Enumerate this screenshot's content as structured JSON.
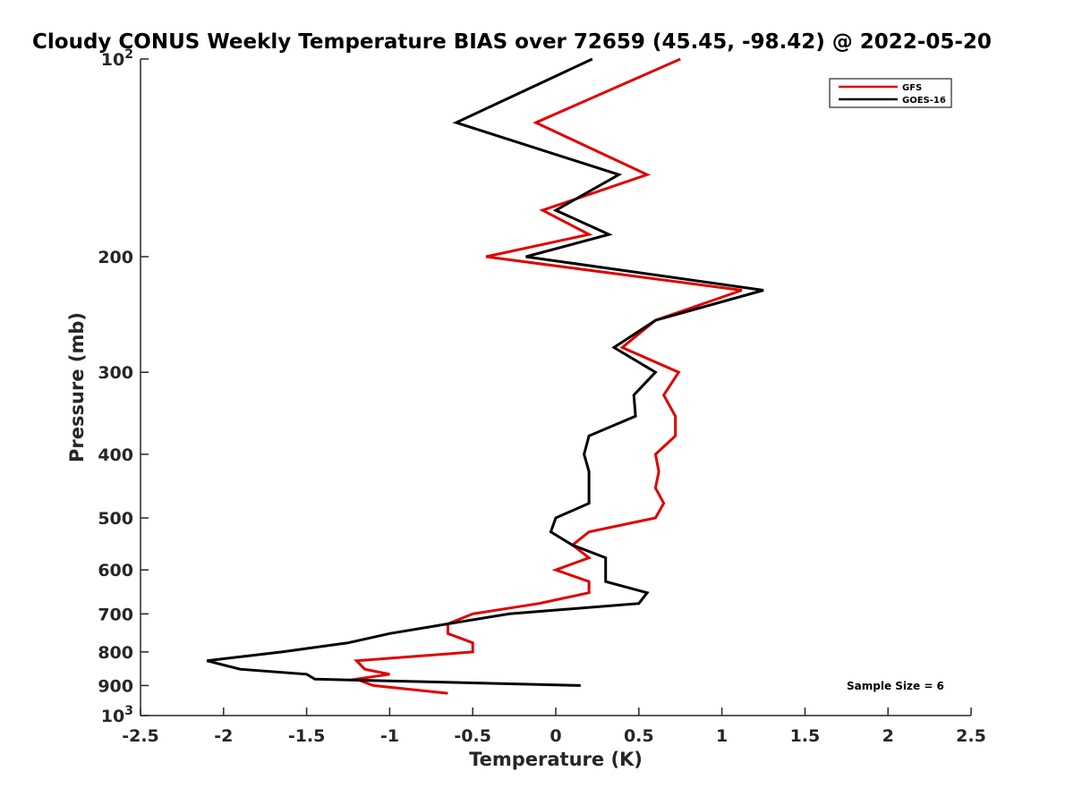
{
  "chart_data": {
    "type": "line",
    "title": "Cloudy CONUS Weekly Temperature BIAS over 72659 (45.45, -98.42) @ 2022-05-20",
    "xlabel": "Temperature (K)",
    "ylabel": "Pressure (mb)",
    "xlim": [
      -2.5,
      2.5
    ],
    "ylim": [
      100,
      1000
    ],
    "y_scale": "log",
    "y_reversed": true,
    "x_ticks": [
      "-2.5",
      "-2",
      "-1.5",
      "-1",
      "-0.5",
      "0",
      "0.5",
      "1",
      "1.5",
      "2",
      "2.5"
    ],
    "y_ticks": [
      {
        "value": 100,
        "base": "10",
        "exp": "2"
      },
      {
        "value": 200,
        "label": "200"
      },
      {
        "value": 300,
        "label": "300"
      },
      {
        "value": 400,
        "label": "400"
      },
      {
        "value": 500,
        "label": "500"
      },
      {
        "value": 600,
        "label": "600"
      },
      {
        "value": 700,
        "label": "700"
      },
      {
        "value": 800,
        "label": "800"
      },
      {
        "value": 900,
        "label": "900"
      },
      {
        "value": 1000,
        "base": "10",
        "exp": "3"
      }
    ],
    "grid": false,
    "legend_position": "top-right",
    "annotation": "Sample Size = 6",
    "series": [
      {
        "name": "GFS",
        "color": "#e00000",
        "points": [
          [
            0.75,
            100
          ],
          [
            -0.12,
            125
          ],
          [
            0.55,
            150
          ],
          [
            -0.08,
            170
          ],
          [
            0.2,
            185
          ],
          [
            -0.42,
            200
          ],
          [
            1.12,
            225
          ],
          [
            0.6,
            250
          ],
          [
            0.4,
            275
          ],
          [
            0.74,
            300
          ],
          [
            0.65,
            325
          ],
          [
            0.72,
            350
          ],
          [
            0.72,
            375
          ],
          [
            0.6,
            400
          ],
          [
            0.62,
            425
          ],
          [
            0.6,
            450
          ],
          [
            0.65,
            475
          ],
          [
            0.6,
            500
          ],
          [
            0.2,
            525
          ],
          [
            0.1,
            550
          ],
          [
            0.2,
            575
          ],
          [
            0.0,
            600
          ],
          [
            0.2,
            625
          ],
          [
            0.2,
            650
          ],
          [
            -0.1,
            675
          ],
          [
            -0.5,
            700
          ],
          [
            -0.65,
            725
          ],
          [
            -0.65,
            750
          ],
          [
            -0.5,
            775
          ],
          [
            -0.5,
            800
          ],
          [
            -1.2,
            825
          ],
          [
            -1.15,
            850
          ],
          [
            -1.0,
            865
          ],
          [
            -1.2,
            880
          ],
          [
            -1.1,
            900
          ],
          [
            -0.65,
            925
          ]
        ]
      },
      {
        "name": "GOES-16",
        "color": "#000000",
        "points": [
          [
            0.22,
            100
          ],
          [
            -0.6,
            125
          ],
          [
            0.38,
            150
          ],
          [
            0.0,
            170
          ],
          [
            0.32,
            185
          ],
          [
            -0.18,
            200
          ],
          [
            1.25,
            225
          ],
          [
            0.6,
            250
          ],
          [
            0.35,
            275
          ],
          [
            0.6,
            300
          ],
          [
            0.47,
            325
          ],
          [
            0.48,
            350
          ],
          [
            0.2,
            375
          ],
          [
            0.17,
            400
          ],
          [
            0.2,
            425
          ],
          [
            0.2,
            450
          ],
          [
            0.2,
            475
          ],
          [
            0.0,
            500
          ],
          [
            -0.03,
            525
          ],
          [
            0.1,
            550
          ],
          [
            0.3,
            575
          ],
          [
            0.3,
            600
          ],
          [
            0.3,
            625
          ],
          [
            0.55,
            650
          ],
          [
            0.5,
            675
          ],
          [
            -0.28,
            700
          ],
          [
            -0.65,
            725
          ],
          [
            -1.0,
            750
          ],
          [
            -1.25,
            775
          ],
          [
            -1.65,
            800
          ],
          [
            -2.1,
            825
          ],
          [
            -1.9,
            850
          ],
          [
            -1.5,
            865
          ],
          [
            -1.45,
            880
          ],
          [
            0.15,
            900
          ]
        ]
      }
    ]
  }
}
